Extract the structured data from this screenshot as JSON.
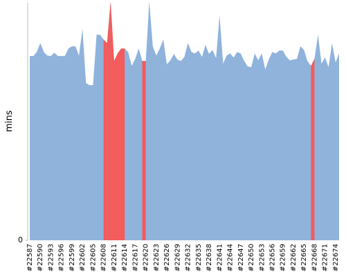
{
  "chart_data": {
    "type": "area",
    "y_label": "mins",
    "categories": [
      "#22587",
      null,
      null,
      "#22590",
      null,
      null,
      "#22593",
      null,
      null,
      "#22596",
      null,
      null,
      "#22599",
      null,
      null,
      "#22602",
      null,
      null,
      "#22605",
      null,
      null,
      "#22608",
      null,
      null,
      "#22611",
      null,
      null,
      "#22614",
      null,
      null,
      "#22617",
      null,
      null,
      "#22620",
      null,
      null,
      "#22623",
      null,
      null,
      "#22626",
      null,
      null,
      "#22629",
      null,
      null,
      "#22632",
      null,
      null,
      "#22635",
      null,
      null,
      "#22638",
      null,
      null,
      "#22641",
      null,
      null,
      "#22644",
      null,
      null,
      "#22647",
      null,
      null,
      "#22650",
      null,
      null,
      "#22653",
      null,
      null,
      "#22656",
      null,
      null,
      "#22659",
      null,
      null,
      "#22662",
      null,
      null,
      "#22665",
      null,
      null,
      "#22668",
      null,
      null,
      "#22671",
      null,
      null,
      "#22674",
      null
    ],
    "series": [
      {
        "color": "#90b3dc",
        "fail_color": "#f45b5b",
        "values": [
          77.8,
          77.8,
          79.5,
          83.3,
          79.5,
          78,
          77.8,
          79.2,
          77.8,
          77.8,
          77.8,
          81,
          81.9,
          81.9,
          78,
          89.2,
          66.4,
          65.5,
          65.5,
          86.8,
          86.8,
          84.8,
          83.3,
          101,
          75.7,
          78.9,
          81,
          81,
          79.5,
          73.7,
          76.6,
          81,
          75.7,
          75.7,
          101,
          81.9,
          78,
          81,
          84.8,
          74.3,
          76,
          78.7,
          76.3,
          75.7,
          77.5,
          83.3,
          79.5,
          78.9,
          80.1,
          77.5,
          82.5,
          78.7,
          80.4,
          76.9,
          95,
          74.6,
          78,
          78.9,
          77.2,
          79.5,
          78.9,
          75.7,
          73.4,
          73.1,
          78.9,
          76,
          78.9,
          72.2,
          76.3,
          79.5,
          78.9,
          80.1,
          80.1,
          77.5,
          76,
          76.3,
          76.6,
          81.9,
          80.4,
          75.7,
          73.7,
          76.6,
          86.8,
          74.6,
          77.2,
          73.1,
          83.3,
          75.1,
          78.9
        ],
        "failed": [
          false,
          false,
          false,
          false,
          false,
          false,
          false,
          false,
          false,
          false,
          false,
          false,
          false,
          false,
          false,
          false,
          false,
          false,
          false,
          false,
          false,
          true,
          true,
          true,
          true,
          true,
          true,
          false,
          false,
          false,
          false,
          false,
          true,
          false,
          false,
          false,
          false,
          false,
          false,
          false,
          false,
          false,
          false,
          false,
          false,
          false,
          false,
          false,
          false,
          false,
          false,
          false,
          false,
          false,
          false,
          false,
          false,
          false,
          false,
          false,
          false,
          false,
          false,
          false,
          false,
          false,
          false,
          false,
          false,
          false,
          false,
          false,
          false,
          false,
          false,
          false,
          false,
          false,
          false,
          false,
          true,
          false,
          false,
          false,
          false,
          false,
          false,
          false,
          false
        ]
      }
    ],
    "ylim": [
      0,
      100
    ],
    "yticks": [
      0
    ]
  }
}
